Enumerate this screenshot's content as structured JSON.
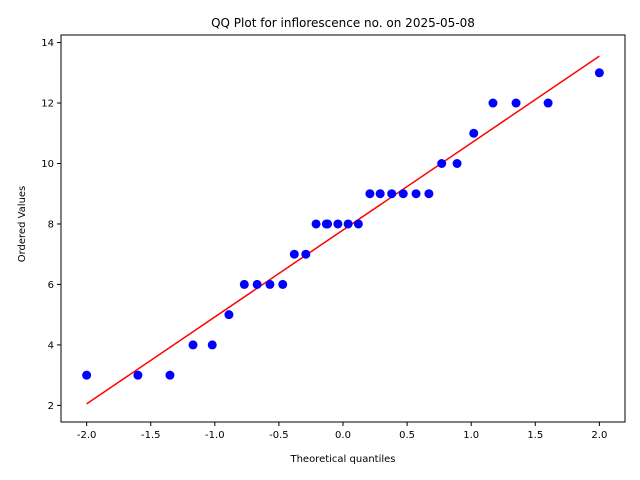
{
  "chart_data": {
    "type": "scatter",
    "title": "QQ Plot for inflorescence no. on 2025-05-08",
    "xlabel": "Theoretical quantiles",
    "ylabel": "Ordered Values",
    "xlim": [
      -2.2,
      2.2
    ],
    "ylim": [
      1.45,
      14.25
    ],
    "xticks": [
      "-2.0",
      "-1.5",
      "-1.0",
      "-0.5",
      "0.0",
      "0.5",
      "1.0",
      "1.5",
      "2.0"
    ],
    "yticks": [
      "2",
      "4",
      "6",
      "8",
      "10",
      "12",
      "14"
    ],
    "grid": false,
    "series": [
      {
        "kind": "points",
        "color": "#0000ff",
        "x": [
          -2.0,
          -1.6,
          -1.35,
          -1.17,
          -1.02,
          -0.89,
          -0.77,
          -0.67,
          -0.57,
          -0.47,
          -0.38,
          -0.29,
          -0.21,
          -0.13,
          -0.12,
          -0.04,
          0.04,
          0.12,
          0.21,
          0.29,
          0.38,
          0.47,
          0.57,
          0.67,
          0.77,
          0.89,
          1.02,
          1.17,
          1.35,
          1.6,
          2.0
        ],
        "y": [
          3,
          3,
          3,
          4,
          4,
          5,
          6,
          6,
          6,
          6,
          7,
          7,
          8,
          8,
          8,
          8,
          8,
          8,
          9,
          9,
          9,
          9,
          9,
          9,
          10,
          10,
          11,
          12,
          12,
          12,
          13
        ]
      },
      {
        "kind": "fit-line",
        "color": "#ff0000",
        "x": [
          -2.0,
          2.0
        ],
        "y": [
          2.05,
          13.55
        ]
      }
    ]
  }
}
